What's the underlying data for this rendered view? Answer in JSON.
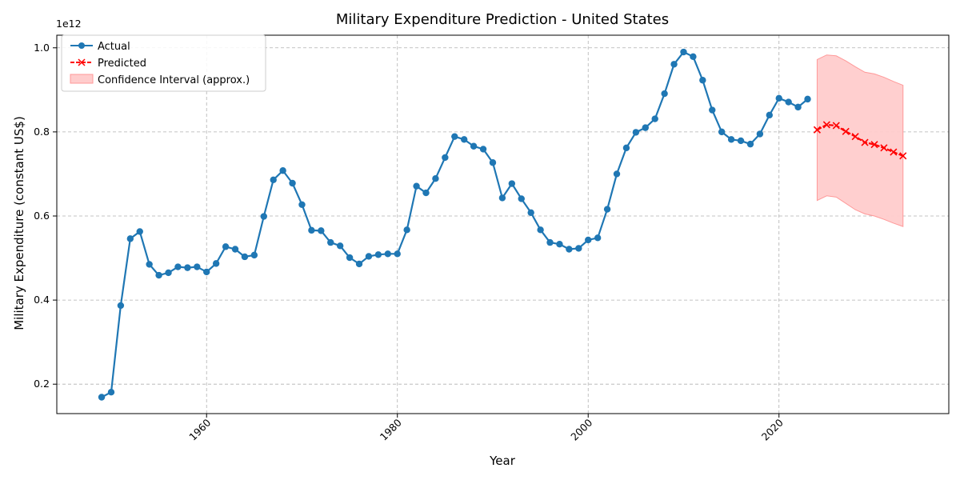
{
  "chart_data": {
    "type": "line",
    "title": "Military Expenditure Prediction - United States",
    "xlabel": "Year",
    "ylabel": "Military Expenditure (constant US$)",
    "y_offset_label": "1e12",
    "y_scale_factor": 1000000000000,
    "xlim": [
      1944.3,
      2037.8
    ],
    "ylim": [
      0.13,
      1.03
    ],
    "x_ticks": [
      1960,
      1980,
      2000,
      2020
    ],
    "x_tick_labels": [
      "1960",
      "1980",
      "2000",
      "2020"
    ],
    "y_ticks": [
      0.2,
      0.4,
      0.6,
      0.8,
      1.0
    ],
    "y_tick_labels": [
      "0.2",
      "0.4",
      "0.6",
      "0.8",
      "1.0"
    ],
    "grid": true,
    "legend_position": "top-left",
    "series": [
      {
        "name": "Actual",
        "color": "#1f77b4",
        "marker": "circle",
        "x": [
          1949,
          1950,
          1951,
          1952,
          1953,
          1954,
          1955,
          1956,
          1957,
          1958,
          1959,
          1960,
          1961,
          1962,
          1963,
          1964,
          1965,
          1966,
          1967,
          1968,
          1969,
          1970,
          1971,
          1972,
          1973,
          1974,
          1975,
          1976,
          1977,
          1978,
          1979,
          1980,
          1981,
          1982,
          1983,
          1984,
          1985,
          1986,
          1987,
          1988,
          1989,
          1990,
          1991,
          1992,
          1993,
          1994,
          1995,
          1996,
          1997,
          1998,
          1999,
          2000,
          2001,
          2002,
          2003,
          2004,
          2005,
          2006,
          2007,
          2008,
          2009,
          2010,
          2011,
          2012,
          2013,
          2014,
          2015,
          2016,
          2017,
          2018,
          2019,
          2020,
          2021,
          2022,
          2023
        ],
        "y": [
          0.169,
          0.181,
          0.387,
          0.546,
          0.563,
          0.485,
          0.459,
          0.465,
          0.479,
          0.477,
          0.479,
          0.467,
          0.487,
          0.527,
          0.521,
          0.503,
          0.507,
          0.599,
          0.686,
          0.708,
          0.678,
          0.627,
          0.566,
          0.565,
          0.537,
          0.529,
          0.501,
          0.486,
          0.504,
          0.508,
          0.51,
          0.51,
          0.567,
          0.671,
          0.655,
          0.689,
          0.739,
          0.789,
          0.782,
          0.766,
          0.759,
          0.727,
          0.643,
          0.677,
          0.641,
          0.608,
          0.567,
          0.537,
          0.533,
          0.521,
          0.523,
          0.543,
          0.548,
          0.616,
          0.7,
          0.762,
          0.799,
          0.81,
          0.831,
          0.891,
          0.961,
          0.99,
          0.979,
          0.923,
          0.852,
          0.8,
          0.782,
          0.779,
          0.771,
          0.795,
          0.84,
          0.88,
          0.871,
          0.859,
          0.878
        ]
      },
      {
        "name": "Predicted",
        "color": "#ff0000",
        "marker": "x",
        "x": [
          2024,
          2025,
          2026,
          2027,
          2028,
          2029,
          2030,
          2031,
          2032,
          2033
        ],
        "y": [
          0.805,
          0.817,
          0.815,
          0.801,
          0.789,
          0.775,
          0.77,
          0.762,
          0.752,
          0.743
        ]
      }
    ],
    "confidence_interval": {
      "name": "Confidence Interval (approx.)",
      "color": "#ffcccc",
      "edge_color": "#ff9999",
      "x": [
        2024,
        2025,
        2026,
        2027,
        2028,
        2029,
        2030,
        2031,
        2032,
        2033
      ],
      "lower": [
        0.637,
        0.648,
        0.645,
        0.63,
        0.615,
        0.605,
        0.6,
        0.592,
        0.583,
        0.575
      ],
      "upper": [
        0.972,
        0.983,
        0.981,
        0.969,
        0.955,
        0.942,
        0.938,
        0.93,
        0.92,
        0.911
      ]
    }
  }
}
